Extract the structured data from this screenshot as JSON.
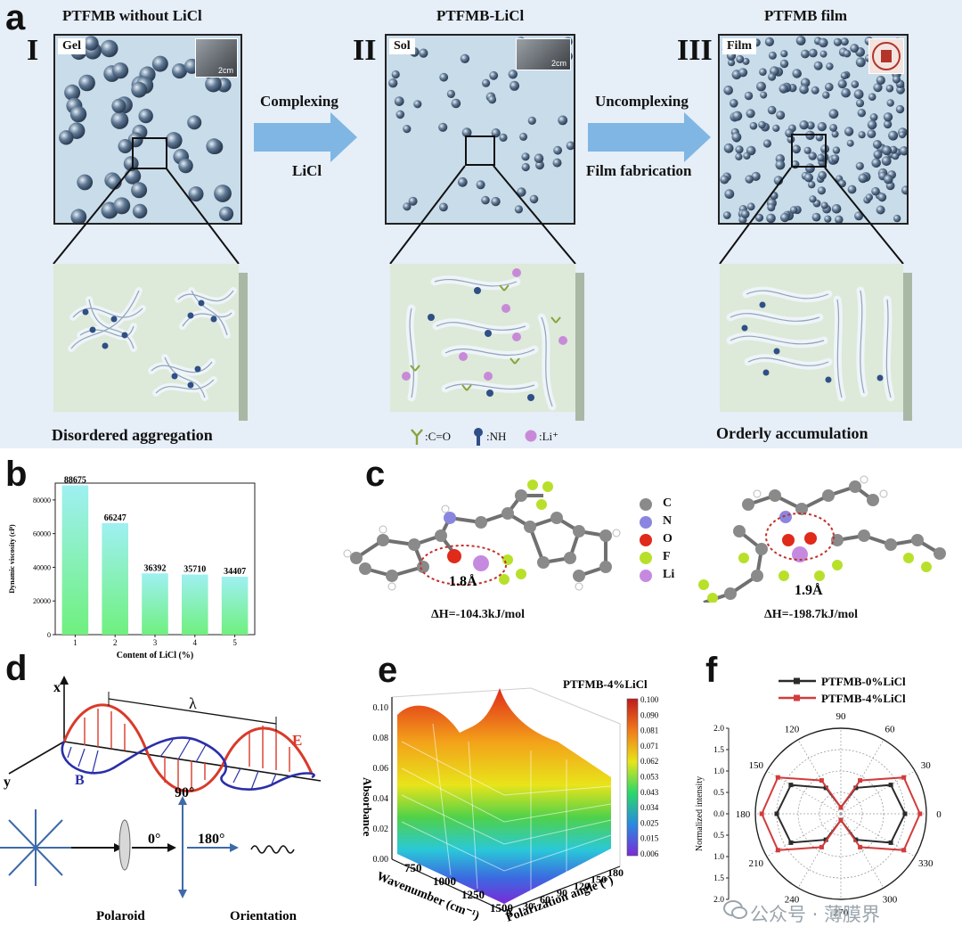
{
  "panel_letters": {
    "a": "a",
    "b": "b",
    "c": "c",
    "d": "d",
    "e": "e",
    "f": "f"
  },
  "panel_a": {
    "stages": [
      {
        "roman": "I",
        "title": "PTFMB without LiCl",
        "box_label": "Gel",
        "scale": "2cm",
        "caption": "Disordered aggregation"
      },
      {
        "roman": "II",
        "title": "PTFMB-LiCl",
        "box_label": "Sol",
        "scale": "2cm",
        "caption": ""
      },
      {
        "roman": "III",
        "title": "PTFMB film",
        "box_label": "Film",
        "scale": "",
        "caption": "Orderly accumulation"
      }
    ],
    "arrow1": {
      "top": "Complexing",
      "bottom": "LiCl"
    },
    "arrow2": {
      "top": "Uncomplexing",
      "bottom": "Film fabrication"
    },
    "legend": {
      "co": ":C=O",
      "nh": ":NH",
      "li": ":Li⁺"
    },
    "colors": {
      "background": "#e6eef8",
      "box": "#c9dcea",
      "arrow": "#7fb6e3",
      "sphere": "#5f7a96",
      "li": "#c88ad8",
      "nh": "#2f4f86",
      "co": "#8aa33a"
    }
  },
  "chart_data": [
    {
      "type": "bar",
      "title": "",
      "xlabel": "Content of LiCl (%)",
      "ylabel": "Dynamic viscosity (cP)",
      "categories": [
        "1",
        "2",
        "3",
        "4",
        "5"
      ],
      "values": [
        88675,
        66247,
        36392,
        35710,
        34407
      ],
      "data_labels": [
        "88675",
        "66247",
        "36392",
        "35710",
        "34407"
      ],
      "ylim": [
        0,
        90000
      ],
      "yticks": [
        "0",
        "20000",
        "40000",
        "60000",
        "80000"
      ],
      "colors": {
        "top": "#9ff0f2",
        "bottom": "#6ff07e"
      }
    },
    {
      "type": "line",
      "subtype": "polar",
      "title": "",
      "ylabel": "Normalized intensity",
      "angle_ticks": [
        "90",
        "60",
        "30",
        "0",
        "330",
        "300",
        "270",
        "240",
        "210",
        "180",
        "150",
        "120"
      ],
      "radial_ticks": [
        "2.0",
        "1.5",
        "1.0",
        "0.5",
        "0.0",
        "0.5",
        "1.0",
        "1.5",
        "2.0"
      ],
      "rlim": [
        0,
        2.0
      ],
      "legend_position": "top",
      "series": [
        {
          "name": "PTFMB-0%LiCl",
          "color": "#2b2b2b",
          "angles": [
            0,
            30,
            60,
            90,
            120,
            150,
            180,
            210,
            240,
            270,
            300,
            330
          ],
          "r": [
            1.5,
            1.35,
            0.7,
            0.15,
            0.7,
            1.35,
            1.5,
            1.35,
            0.7,
            0.15,
            0.7,
            1.35
          ]
        },
        {
          "name": "PTFMB-4%LiCl",
          "color": "#d23c3c",
          "angles": [
            0,
            30,
            60,
            90,
            120,
            150,
            180,
            210,
            240,
            270,
            300,
            330
          ],
          "r": [
            1.85,
            1.7,
            0.9,
            0.15,
            0.9,
            1.7,
            1.85,
            1.7,
            0.9,
            0.15,
            0.9,
            1.7
          ]
        }
      ]
    }
  ],
  "panel_c": {
    "bond1": "1.8Å",
    "bond2": "1.9Å",
    "dh1": "ΔH=-104.3kJ/mol",
    "dh2": "ΔH=-198.7kJ/mol",
    "legend": [
      {
        "label": "C",
        "color": "#8a8a8a"
      },
      {
        "label": "N",
        "color": "#8a86e0"
      },
      {
        "label": "O",
        "color": "#e02a1a"
      },
      {
        "label": "F",
        "color": "#b8e02a"
      },
      {
        "label": "Li",
        "color": "#c58ae0"
      }
    ]
  },
  "panel_d": {
    "x_axis": "x",
    "y_axis": "y",
    "lambda": "λ",
    "e_label": "E",
    "b_label": "B",
    "angle_90": "90°",
    "angle_0": "0°",
    "angle_180": "180°",
    "polaroid": "Polaroid",
    "orientation": "Orientation",
    "colors": {
      "e_wave": "#d93a2a",
      "b_wave": "#2a2fa8"
    }
  },
  "panel_e": {
    "title": "PTFMB-4%LiCl",
    "zlabel": "Absorbance",
    "xlabel": "Wavenumber (cm⁻¹)",
    "ylabel": "Polarization angle (°)",
    "zticks": [
      "0.00",
      "0.02",
      "0.04",
      "0.06",
      "0.08",
      "0.10"
    ],
    "xticks": [
      "750",
      "1000",
      "1250",
      "1500"
    ],
    "yticks": [
      "0",
      "30",
      "60",
      "90",
      "120",
      "150",
      "180"
    ],
    "colorbar_ticks": [
      "0.100",
      "0.090",
      "0.081",
      "0.071",
      "0.062",
      "0.053",
      "0.043",
      "0.034",
      "0.025",
      "0.015",
      "0.006"
    ]
  },
  "watermark": "公众号 · 薄膜界"
}
